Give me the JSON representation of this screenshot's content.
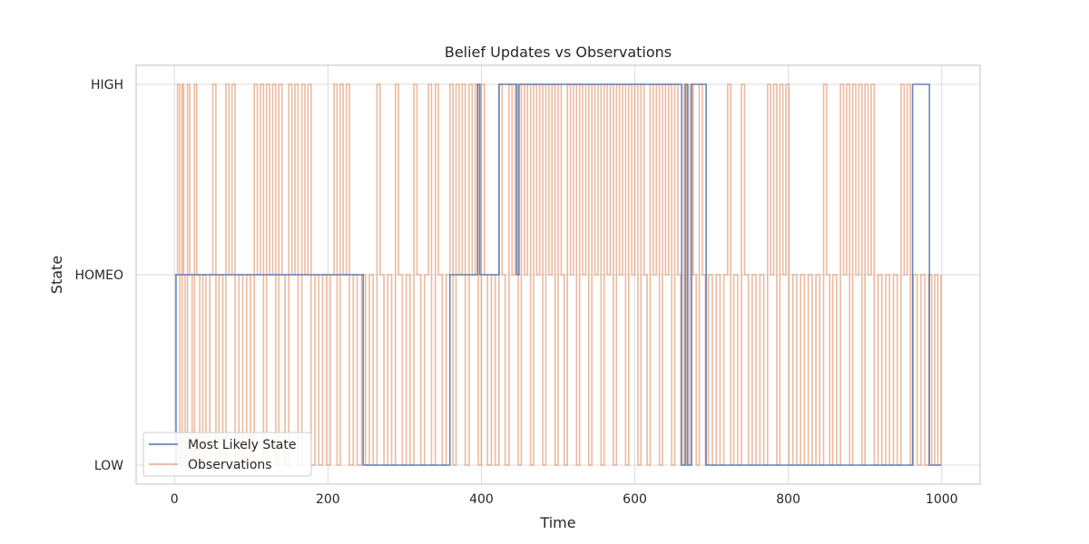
{
  "chart_data": {
    "type": "line",
    "title": "Belief Updates vs Observations",
    "xlabel": "Time",
    "ylabel": "State",
    "xlim": [
      -50,
      1050
    ],
    "ylim": [
      -0.1,
      2.1
    ],
    "x_ticks": [
      0,
      200,
      400,
      600,
      800,
      1000
    ],
    "y_ticks": [
      0,
      1,
      2
    ],
    "y_tick_labels": [
      "LOW",
      "HOMEO",
      "HIGH"
    ],
    "grid": true,
    "legend": {
      "placement": "lower-left",
      "entries": [
        "Most Likely State",
        "Observations"
      ]
    },
    "series": [
      {
        "name": "Most Likely State",
        "color": "#4c72b0",
        "step": true,
        "points": [
          [
            0,
            0
          ],
          [
            2,
            1
          ],
          [
            245,
            1
          ],
          [
            246,
            0
          ],
          [
            358,
            0
          ],
          [
            359,
            1
          ],
          [
            394,
            1
          ],
          [
            395,
            2
          ],
          [
            397,
            2
          ],
          [
            398,
            1
          ],
          [
            422,
            1
          ],
          [
            423,
            2
          ],
          [
            445,
            2
          ],
          [
            446,
            1
          ],
          [
            448,
            1
          ],
          [
            449,
            2
          ],
          [
            660,
            2
          ],
          [
            661,
            0
          ],
          [
            665,
            0
          ],
          [
            666,
            2
          ],
          [
            668,
            2
          ],
          [
            669,
            0
          ],
          [
            673,
            0
          ],
          [
            674,
            2
          ],
          [
            692,
            2
          ],
          [
            693,
            0
          ],
          [
            961,
            0
          ],
          [
            962,
            2
          ],
          [
            983,
            2
          ],
          [
            984,
            0
          ],
          [
            999,
            0
          ]
        ]
      },
      {
        "name": "Observations",
        "color": "#dd8452",
        "step": true,
        "seed": 20240611,
        "points": [
          [
            0,
            1
          ],
          [
            4,
            2
          ],
          [
            7,
            0
          ],
          [
            10,
            2
          ],
          [
            12,
            1
          ],
          [
            14,
            0
          ],
          [
            17,
            2
          ],
          [
            20,
            1
          ],
          [
            23,
            0
          ],
          [
            26,
            2
          ],
          [
            29,
            1
          ],
          [
            33,
            0
          ],
          [
            37,
            1
          ],
          [
            41,
            0
          ],
          [
            46,
            1
          ],
          [
            50,
            2
          ],
          [
            54,
            0
          ],
          [
            58,
            1
          ],
          [
            63,
            0
          ],
          [
            67,
            2
          ],
          [
            71,
            1
          ],
          [
            75,
            2
          ],
          [
            79,
            0
          ],
          [
            84,
            1
          ],
          [
            89,
            0
          ],
          [
            94,
            1
          ],
          [
            99,
            0
          ],
          [
            104,
            2
          ],
          [
            108,
            1
          ],
          [
            112,
            2
          ],
          [
            116,
            0
          ],
          [
            120,
            2
          ],
          [
            124,
            1
          ],
          [
            128,
            2
          ],
          [
            132,
            0
          ],
          [
            136,
            2
          ],
          [
            140,
            1
          ],
          [
            144,
            0
          ],
          [
            149,
            2
          ],
          [
            153,
            1
          ],
          [
            157,
            2
          ],
          [
            161,
            0
          ],
          [
            166,
            2
          ],
          [
            170,
            1
          ],
          [
            174,
            2
          ],
          [
            178,
            0
          ],
          [
            183,
            1
          ],
          [
            188,
            0
          ],
          [
            193,
            1
          ],
          [
            198,
            0
          ],
          [
            203,
            1
          ],
          [
            208,
            2
          ],
          [
            212,
            0
          ],
          [
            216,
            2
          ],
          [
            220,
            1
          ],
          [
            224,
            2
          ],
          [
            228,
            0
          ],
          [
            233,
            1
          ],
          [
            238,
            0
          ],
          [
            244,
            1
          ],
          [
            249,
            0
          ],
          [
            254,
            1
          ],
          [
            259,
            0
          ],
          [
            264,
            2
          ],
          [
            268,
            1
          ],
          [
            273,
            0
          ],
          [
            278,
            1
          ],
          [
            283,
            0
          ],
          [
            288,
            2
          ],
          [
            292,
            1
          ],
          [
            297,
            0
          ],
          [
            302,
            1
          ],
          [
            307,
            0
          ],
          [
            312,
            2
          ],
          [
            316,
            1
          ],
          [
            321,
            0
          ],
          [
            326,
            1
          ],
          [
            331,
            2
          ],
          [
            335,
            0
          ],
          [
            340,
            2
          ],
          [
            344,
            1
          ],
          [
            349,
            0
          ],
          [
            354,
            1
          ],
          [
            359,
            2
          ],
          [
            363,
            0
          ],
          [
            367,
            2
          ],
          [
            371,
            1
          ],
          [
            375,
            2
          ],
          [
            379,
            0
          ],
          [
            384,
            2
          ],
          [
            388,
            1
          ],
          [
            392,
            2
          ],
          [
            396,
            0
          ],
          [
            400,
            2
          ],
          [
            404,
            1
          ],
          [
            408,
            0
          ],
          [
            413,
            1
          ],
          [
            418,
            0
          ],
          [
            423,
            2
          ],
          [
            427,
            1
          ],
          [
            431,
            0
          ],
          [
            436,
            2
          ],
          [
            440,
            1
          ],
          [
            444,
            2
          ],
          [
            448,
            0
          ],
          [
            452,
            2
          ],
          [
            456,
            1
          ],
          [
            460,
            2
          ],
          [
            464,
            0
          ],
          [
            468,
            2
          ],
          [
            472,
            1
          ],
          [
            476,
            2
          ],
          [
            480,
            0
          ],
          [
            484,
            2
          ],
          [
            488,
            1
          ],
          [
            492,
            2
          ],
          [
            496,
            0
          ],
          [
            500,
            2
          ],
          [
            504,
            1
          ],
          [
            508,
            0
          ],
          [
            512,
            2
          ],
          [
            516,
            1
          ],
          [
            520,
            2
          ],
          [
            524,
            0
          ],
          [
            528,
            2
          ],
          [
            532,
            1
          ],
          [
            536,
            2
          ],
          [
            540,
            0
          ],
          [
            544,
            2
          ],
          [
            548,
            1
          ],
          [
            552,
            2
          ],
          [
            556,
            0
          ],
          [
            560,
            2
          ],
          [
            564,
            1
          ],
          [
            568,
            2
          ],
          [
            572,
            0
          ],
          [
            576,
            2
          ],
          [
            580,
            1
          ],
          [
            584,
            2
          ],
          [
            588,
            0
          ],
          [
            592,
            2
          ],
          [
            596,
            1
          ],
          [
            600,
            2
          ],
          [
            604,
            0
          ],
          [
            608,
            2
          ],
          [
            612,
            1
          ],
          [
            616,
            0
          ],
          [
            620,
            2
          ],
          [
            624,
            1
          ],
          [
            628,
            2
          ],
          [
            632,
            0
          ],
          [
            636,
            2
          ],
          [
            640,
            1
          ],
          [
            644,
            2
          ],
          [
            648,
            0
          ],
          [
            652,
            2
          ],
          [
            656,
            1
          ],
          [
            660,
            0
          ],
          [
            664,
            2
          ],
          [
            668,
            0
          ],
          [
            672,
            2
          ],
          [
            676,
            1
          ],
          [
            680,
            0
          ],
          [
            684,
            2
          ],
          [
            688,
            1
          ],
          [
            692,
            0
          ],
          [
            696,
            1
          ],
          [
            701,
            0
          ],
          [
            706,
            1
          ],
          [
            711,
            0
          ],
          [
            716,
            1
          ],
          [
            721,
            2
          ],
          [
            725,
            0
          ],
          [
            729,
            1
          ],
          [
            734,
            0
          ],
          [
            739,
            2
          ],
          [
            743,
            1
          ],
          [
            748,
            0
          ],
          [
            753,
            1
          ],
          [
            758,
            0
          ],
          [
            763,
            1
          ],
          [
            768,
            0
          ],
          [
            773,
            2
          ],
          [
            777,
            1
          ],
          [
            781,
            2
          ],
          [
            785,
            0
          ],
          [
            789,
            2
          ],
          [
            793,
            1
          ],
          [
            797,
            2
          ],
          [
            801,
            0
          ],
          [
            806,
            1
          ],
          [
            811,
            0
          ],
          [
            816,
            1
          ],
          [
            821,
            0
          ],
          [
            826,
            1
          ],
          [
            831,
            0
          ],
          [
            836,
            1
          ],
          [
            841,
            0
          ],
          [
            846,
            2
          ],
          [
            850,
            1
          ],
          [
            854,
            0
          ],
          [
            858,
            1
          ],
          [
            863,
            0
          ],
          [
            868,
            2
          ],
          [
            872,
            1
          ],
          [
            876,
            2
          ],
          [
            880,
            0
          ],
          [
            884,
            2
          ],
          [
            888,
            1
          ],
          [
            892,
            2
          ],
          [
            896,
            0
          ],
          [
            900,
            2
          ],
          [
            904,
            1
          ],
          [
            908,
            2
          ],
          [
            912,
            0
          ],
          [
            917,
            1
          ],
          [
            922,
            0
          ],
          [
            927,
            1
          ],
          [
            932,
            0
          ],
          [
            937,
            1
          ],
          [
            942,
            0
          ],
          [
            947,
            2
          ],
          [
            951,
            1
          ],
          [
            955,
            2
          ],
          [
            959,
            0
          ],
          [
            963,
            1
          ],
          [
            968,
            0
          ],
          [
            973,
            1
          ],
          [
            978,
            0
          ],
          [
            983,
            1
          ],
          [
            987,
            0
          ],
          [
            991,
            1
          ],
          [
            995,
            0
          ],
          [
            999,
            1
          ]
        ]
      }
    ]
  }
}
